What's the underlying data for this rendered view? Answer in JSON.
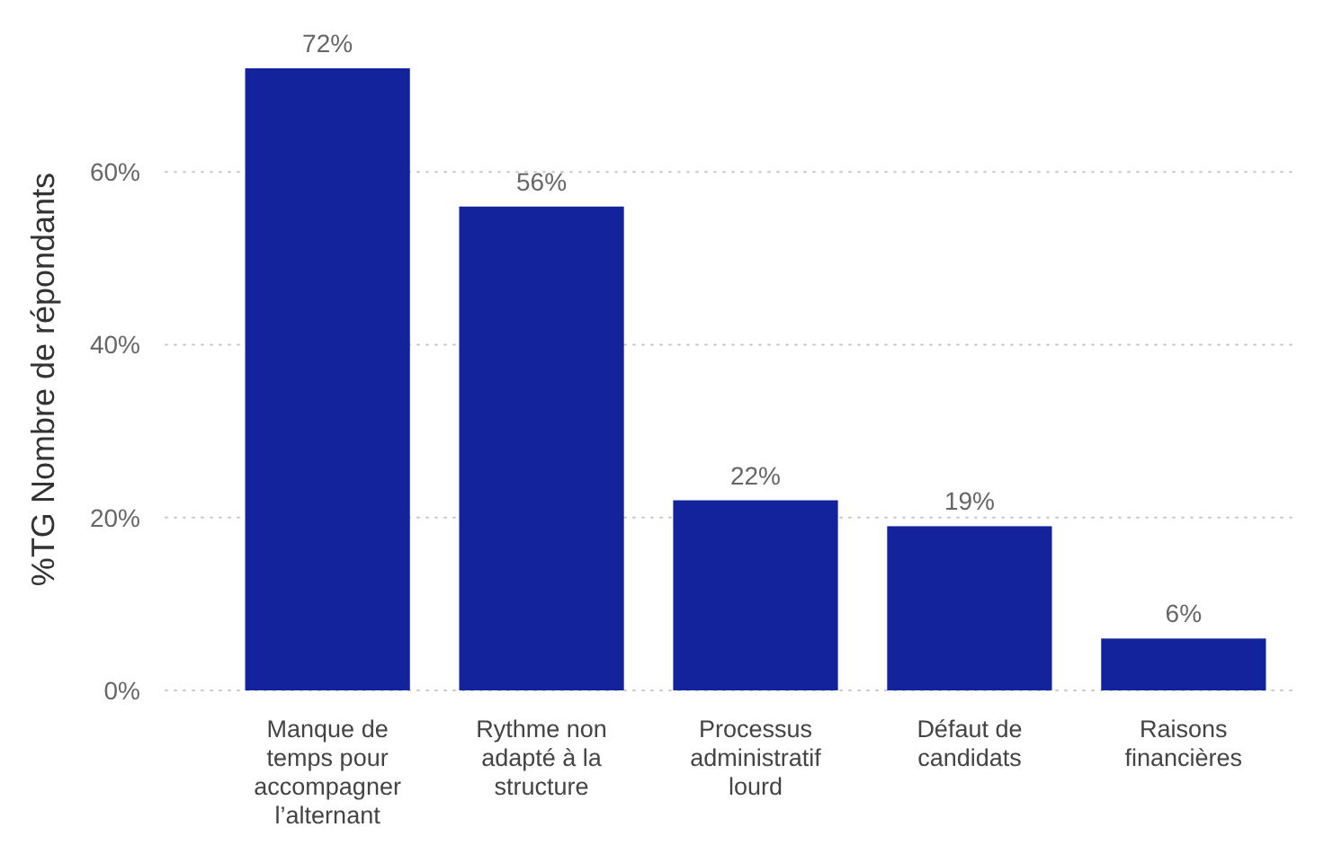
{
  "chart_data": {
    "type": "bar",
    "ylabel": "%TG Nombre de répondants",
    "categories": [
      "Manque de temps pour accompagner l’alternant",
      "Rythme non adapté à la structure",
      "Processus administratif lourd",
      "Défaut de candidats",
      "Raisons financières"
    ],
    "values": [
      72,
      56,
      22,
      19,
      6
    ],
    "value_labels": [
      "72%",
      "56%",
      "22%",
      "19%",
      "6%"
    ],
    "color": "#13239b",
    "ylim": [
      0,
      72
    ],
    "yticks": [
      {
        "value": 0,
        "label": "0%"
      },
      {
        "value": 20,
        "label": "20%"
      },
      {
        "value": 40,
        "label": "40%"
      },
      {
        "value": 60,
        "label": "60%"
      }
    ],
    "grid": "y"
  }
}
